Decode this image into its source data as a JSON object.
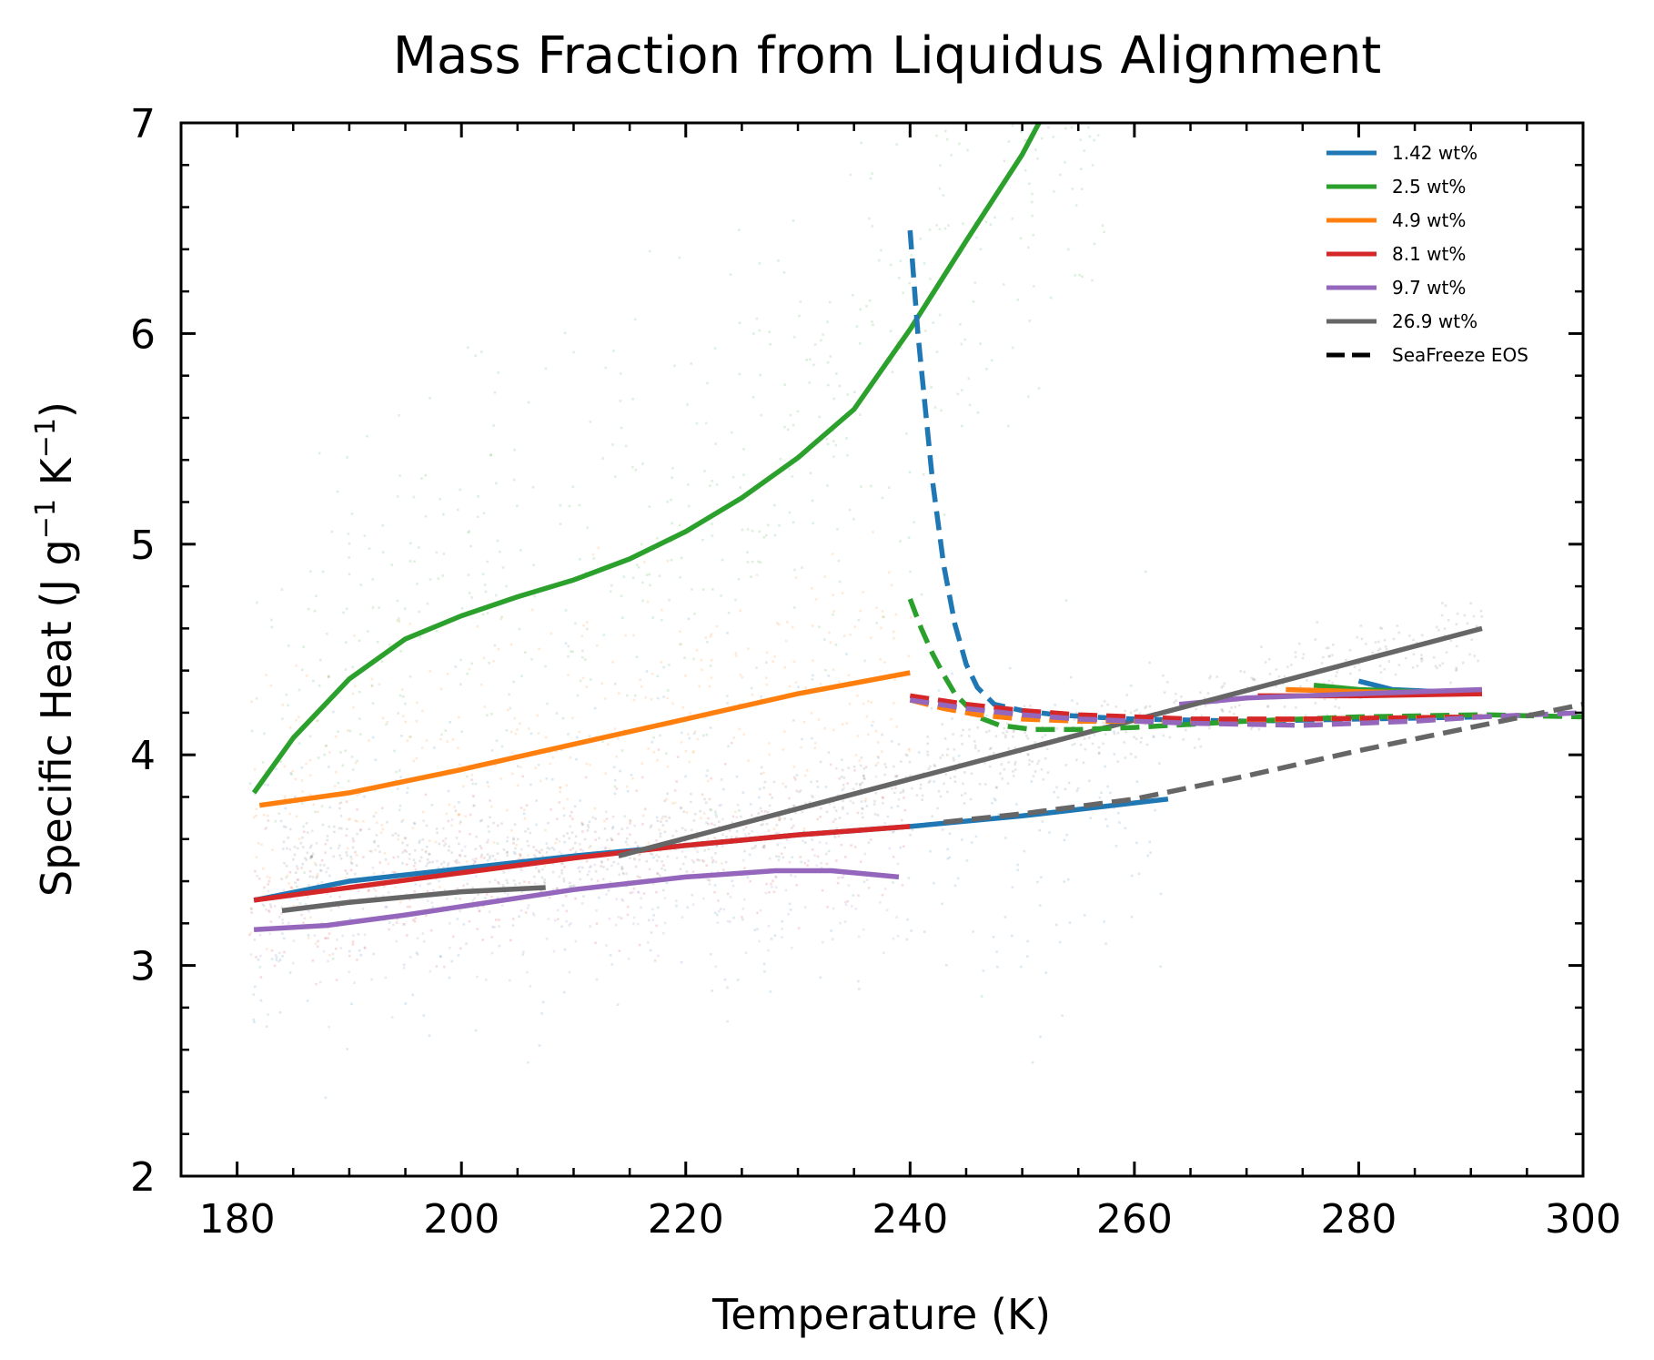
{
  "chart_data": {
    "type": "line",
    "title": "Mass Fraction from Liquidus Alignment",
    "xlabel": "Temperature (K)",
    "ylabel_main": "Specific Heat (J g",
    "ylabel_sup1": "−1",
    "ylabel_mid": " K",
    "ylabel_sup2": "−1",
    "ylabel_end": ")",
    "xlim": [
      175,
      300
    ],
    "ylim": [
      2,
      7
    ],
    "xticks": [
      180,
      200,
      220,
      240,
      260,
      280,
      300
    ],
    "yticks": [
      2,
      3,
      4,
      5,
      6,
      7
    ],
    "x_tick_labels": [
      "180",
      "200",
      "220",
      "240",
      "260",
      "280",
      "300"
    ],
    "y_tick_labels": [
      "2",
      "3",
      "4",
      "5",
      "6",
      "7"
    ],
    "grid": false,
    "legend_position": "top-right",
    "legend": [
      {
        "label": "1.42 wt%",
        "color": "#1f77b4",
        "style": "solid"
      },
      {
        "label": "2.5 wt%",
        "color": "#2ca02c",
        "style": "solid"
      },
      {
        "label": "4.9 wt%",
        "color": "#ff7f0e",
        "style": "solid"
      },
      {
        "label": "8.1 wt%",
        "color": "#d62728",
        "style": "solid"
      },
      {
        "label": "9.7 wt%",
        "color": "#9467bd",
        "style": "solid"
      },
      {
        "label": "26.9 wt%",
        "color": "#666666",
        "style": "solid"
      },
      {
        "label": "SeaFreeze EOS",
        "color": "#000000",
        "style": "dashed"
      }
    ],
    "series": [
      {
        "name": "1.42 wt%",
        "color": "#1f77b4",
        "style": "solid",
        "points": [
          [
            181.5,
            3.31
          ],
          [
            190,
            3.4
          ],
          [
            200,
            3.46
          ],
          [
            210,
            3.52
          ],
          [
            220,
            3.57
          ],
          [
            230,
            3.62
          ],
          [
            240,
            3.66
          ],
          [
            250,
            3.71
          ],
          [
            263,
            3.79
          ]
        ]
      },
      {
        "name": "1.42 wt%",
        "color": "#1f77b4",
        "style": "solid",
        "points": [
          [
            280,
            4.35
          ],
          [
            283,
            4.31
          ],
          [
            287,
            4.3
          ],
          [
            291,
            4.3
          ]
        ]
      },
      {
        "name": "2.5 wt%",
        "color": "#2ca02c",
        "style": "solid",
        "points": [
          [
            181.5,
            3.82
          ],
          [
            185,
            4.08
          ],
          [
            190,
            4.36
          ],
          [
            195,
            4.55
          ],
          [
            200,
            4.66
          ],
          [
            205,
            4.75
          ],
          [
            210,
            4.83
          ],
          [
            215,
            4.93
          ],
          [
            220,
            5.06
          ],
          [
            225,
            5.22
          ],
          [
            230,
            5.41
          ],
          [
            235,
            5.64
          ],
          [
            240,
            6.02
          ],
          [
            245,
            6.44
          ],
          [
            250,
            6.85
          ],
          [
            251.5,
            7.0
          ]
        ]
      },
      {
        "name": "2.5 wt%",
        "color": "#2ca02c",
        "style": "solid",
        "points": [
          [
            276,
            4.33
          ],
          [
            280,
            4.31
          ],
          [
            285,
            4.3
          ],
          [
            291,
            4.3
          ]
        ]
      },
      {
        "name": "4.9 wt%",
        "color": "#ff7f0e",
        "style": "solid",
        "points": [
          [
            182,
            3.76
          ],
          [
            190,
            3.82
          ],
          [
            200,
            3.93
          ],
          [
            210,
            4.05
          ],
          [
            220,
            4.17
          ],
          [
            230,
            4.29
          ],
          [
            240,
            4.39
          ]
        ]
      },
      {
        "name": "4.9 wt%",
        "color": "#ff7f0e",
        "style": "solid",
        "points": [
          [
            273.5,
            4.31
          ],
          [
            280,
            4.3
          ],
          [
            291,
            4.29
          ]
        ]
      },
      {
        "name": "8.1 wt%",
        "color": "#d62728",
        "style": "solid",
        "points": [
          [
            181.5,
            3.31
          ],
          [
            190,
            3.37
          ],
          [
            200,
            3.44
          ],
          [
            210,
            3.51
          ],
          [
            220,
            3.57
          ],
          [
            230,
            3.62
          ],
          [
            240,
            3.66
          ]
        ]
      },
      {
        "name": "8.1 wt%",
        "color": "#d62728",
        "style": "solid",
        "points": [
          [
            271,
            4.28
          ],
          [
            280,
            4.28
          ],
          [
            291,
            4.29
          ]
        ]
      },
      {
        "name": "9.7 wt%",
        "color": "#9467bd",
        "style": "solid",
        "points": [
          [
            181.5,
            3.17
          ],
          [
            188,
            3.19
          ],
          [
            195,
            3.24
          ],
          [
            200,
            3.28
          ],
          [
            210,
            3.36
          ],
          [
            220,
            3.42
          ],
          [
            228,
            3.45
          ],
          [
            233,
            3.45
          ],
          [
            239,
            3.42
          ]
        ]
      },
      {
        "name": "9.7 wt%",
        "color": "#9467bd",
        "style": "solid",
        "points": [
          [
            264,
            4.24
          ],
          [
            270,
            4.27
          ],
          [
            280,
            4.29
          ],
          [
            291,
            4.31
          ]
        ]
      },
      {
        "name": "26.9 wt%",
        "color": "#666666",
        "style": "solid",
        "points": [
          [
            184,
            3.26
          ],
          [
            190,
            3.3
          ],
          [
            200,
            3.35
          ],
          [
            207.5,
            3.37
          ]
        ]
      },
      {
        "name": "26.9 wt%",
        "color": "#666666",
        "style": "solid",
        "points": [
          [
            214,
            3.52
          ],
          [
            291,
            4.6
          ]
        ]
      },
      {
        "name": "1.42 wt%",
        "color": "#1f77b4",
        "style": "dashed",
        "points": [
          [
            240,
            6.49
          ],
          [
            240.7,
            6.0
          ],
          [
            242,
            5.3
          ],
          [
            243,
            4.9
          ],
          [
            244,
            4.62
          ],
          [
            245,
            4.43
          ],
          [
            246,
            4.32
          ],
          [
            247.5,
            4.24
          ],
          [
            250,
            4.21
          ],
          [
            253,
            4.19
          ],
          [
            256,
            4.18
          ],
          [
            260,
            4.17
          ],
          [
            270,
            4.16
          ],
          [
            280,
            4.17
          ],
          [
            291,
            4.18
          ]
        ]
      },
      {
        "name": "2.5 wt%",
        "color": "#2ca02c",
        "style": "dashed",
        "points": [
          [
            240,
            4.74
          ],
          [
            241,
            4.6
          ],
          [
            242,
            4.48
          ],
          [
            243,
            4.38
          ],
          [
            244,
            4.29
          ],
          [
            246,
            4.18
          ],
          [
            248,
            4.14
          ],
          [
            251,
            4.12
          ],
          [
            255,
            4.12
          ],
          [
            260,
            4.13
          ],
          [
            270,
            4.16
          ],
          [
            280,
            4.18
          ],
          [
            291,
            4.19
          ],
          [
            300,
            4.18
          ]
        ]
      },
      {
        "name": "4.9 wt%",
        "color": "#ff7f0e",
        "style": "dashed",
        "points": [
          [
            240,
            4.26
          ],
          [
            243,
            4.22
          ],
          [
            246,
            4.19
          ],
          [
            250,
            4.17
          ],
          [
            255,
            4.16
          ],
          [
            265,
            4.16
          ],
          [
            275,
            4.17
          ],
          [
            291,
            4.18
          ]
        ]
      },
      {
        "name": "8.1 wt%",
        "color": "#d62728",
        "style": "dashed",
        "points": [
          [
            240,
            4.28
          ],
          [
            245,
            4.24
          ],
          [
            250,
            4.21
          ],
          [
            255,
            4.19
          ],
          [
            265,
            4.17
          ],
          [
            275,
            4.17
          ],
          [
            291,
            4.18
          ]
        ]
      },
      {
        "name": "9.7 wt%",
        "color": "#9467bd",
        "style": "dashed",
        "points": [
          [
            240,
            4.26
          ],
          [
            245,
            4.22
          ],
          [
            250,
            4.19
          ],
          [
            255,
            4.17
          ],
          [
            265,
            4.15
          ],
          [
            275,
            4.14
          ],
          [
            285,
            4.16
          ],
          [
            291,
            4.18
          ],
          [
            300,
            4.2
          ]
        ]
      },
      {
        "name": "26.9 wt%",
        "color": "#666666",
        "style": "dashed",
        "points": [
          [
            243,
            3.68
          ],
          [
            250,
            3.72
          ],
          [
            260,
            3.79
          ],
          [
            270,
            3.9
          ],
          [
            280,
            4.02
          ],
          [
            290,
            4.13
          ],
          [
            300,
            4.24
          ]
        ]
      }
    ],
    "scatter_clouds": [
      {
        "name": "2.5 wt%",
        "color": "#2ca02c",
        "x": [
          181,
          258
        ],
        "y_center_series": 2,
        "spread": 0.55,
        "count": 650
      },
      {
        "name": "4.9 wt%",
        "color": "#ff7f0e",
        "x": [
          181,
          240
        ],
        "y_center_series": 4,
        "spread": 0.35,
        "count": 420
      },
      {
        "name": "1.42 wt%",
        "color": "#1f77b4",
        "x": [
          181,
          263
        ],
        "y_center_series": 0,
        "spread": 0.45,
        "count": 420
      },
      {
        "name": "8.1 wt%",
        "color": "#d62728",
        "x": [
          181,
          240
        ],
        "y_center_series": 6,
        "spread": 0.2,
        "count": 320
      },
      {
        "name": "9.7 wt%",
        "color": "#9467bd",
        "x": [
          181,
          239
        ],
        "y_center_series": 8,
        "spread": 0.2,
        "count": 320
      },
      {
        "name": "26.9 wt%",
        "color": "#666666",
        "x": [
          184,
          291
        ],
        "y_center_series": 11,
        "spread": 0.1,
        "count": 900
      }
    ]
  }
}
